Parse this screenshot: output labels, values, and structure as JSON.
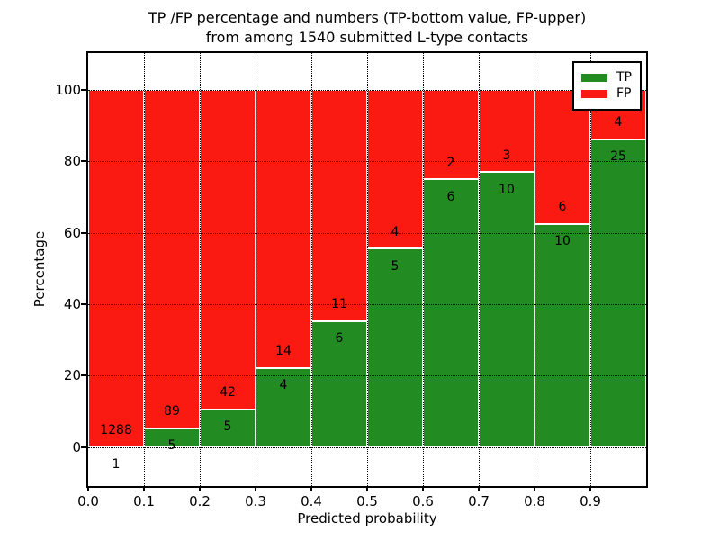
{
  "title": {
    "line1": "TP /FP percentage and numbers (TP-bottom value, FP-upper)",
    "line2": "from among 1540 submitted L-type contacts"
  },
  "axes": {
    "xlabel": "Predicted probability",
    "ylabel": "Percentage",
    "xtick_labels": [
      "0.0",
      "0.1",
      "0.2",
      "0.3",
      "0.4",
      "0.5",
      "0.6",
      "0.7",
      "0.8",
      "0.9"
    ],
    "ytick_values": [
      0,
      20,
      40,
      60,
      80,
      100
    ]
  },
  "legend": {
    "entries": [
      {
        "label": "TP",
        "color": "#228b22"
      },
      {
        "label": "FP",
        "color": "#fb1a12"
      }
    ]
  },
  "colors": {
    "tp": "#228b22",
    "fp": "#fb1a12",
    "grid": "#000000",
    "frame": "#000000"
  },
  "chart_data": {
    "type": "bar",
    "stacked": true,
    "normalized": "each bin scaled to 100%",
    "title": "TP /FP percentage and numbers (TP-bottom value, FP-upper) from among 1540 submitted L-type contacts",
    "xlabel": "Predicted probability",
    "ylabel": "Percentage",
    "total_contacts": 1540,
    "bin_edges": [
      0.0,
      0.1,
      0.2,
      0.3,
      0.4,
      0.5,
      0.6,
      0.7,
      0.8,
      0.9,
      1.0
    ],
    "categories": [
      "0.0-0.1",
      "0.1-0.2",
      "0.2-0.3",
      "0.3-0.4",
      "0.4-0.5",
      "0.5-0.6",
      "0.6-0.7",
      "0.7-0.8",
      "0.8-0.9",
      "0.9-1.0"
    ],
    "series": [
      {
        "name": "TP",
        "color": "#228b22",
        "counts": [
          1,
          5,
          5,
          4,
          6,
          5,
          6,
          10,
          10,
          25
        ]
      },
      {
        "name": "FP",
        "color": "#fb1a12",
        "counts": [
          1288,
          89,
          42,
          14,
          11,
          4,
          2,
          3,
          6,
          4
        ]
      }
    ],
    "tp_percent": [
      0.08,
      5.32,
      10.64,
      22.22,
      35.29,
      55.56,
      75.0,
      76.92,
      62.5,
      86.21
    ],
    "ylim": [
      -10.9,
      110.3
    ],
    "yticks": [
      0,
      20,
      40,
      60,
      80,
      100
    ],
    "grid": true,
    "legend_position": "upper right"
  }
}
